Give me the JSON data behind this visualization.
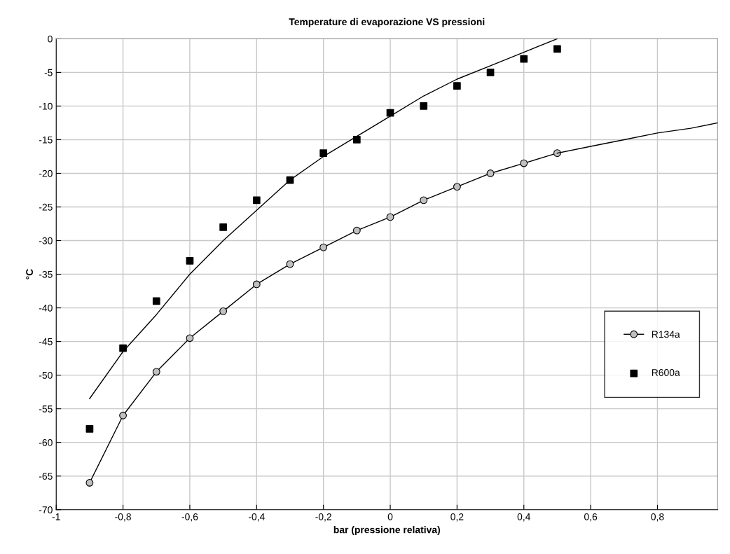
{
  "chart_data": {
    "type": "line",
    "title": "Temperature di evaporazione VS pressioni",
    "xlabel": "bar (pressione relativa)",
    "ylabel": "°C",
    "xlim": [
      -1,
      0.98
    ],
    "xticks": [
      {
        "value": -1,
        "label": "-1"
      },
      {
        "value": -0.8,
        "label": "-0,8"
      },
      {
        "value": -0.6,
        "label": "-0,6"
      },
      {
        "value": -0.4,
        "label": "-0,4"
      },
      {
        "value": -0.2,
        "label": "-0,2"
      },
      0,
      {
        "value": 0.2,
        "label": "0,2"
      },
      {
        "value": 0.4,
        "label": "0,4"
      },
      {
        "value": 0.6,
        "label": "0,6"
      },
      {
        "value": 0.8,
        "label": "0,8"
      }
    ],
    "ylim": [
      -70,
      0
    ],
    "yticks": [
      -70,
      -65,
      -60,
      -55,
      -50,
      -45,
      -40,
      -35,
      -30,
      -25,
      -20,
      -15,
      -10,
      -5,
      0
    ],
    "grid": true,
    "legend": "right",
    "series": [
      {
        "name": "R134a",
        "marker": "circle",
        "color": "#000000",
        "x": [
          -0.9,
          -0.8,
          -0.7,
          -0.6,
          -0.5,
          -0.4,
          -0.3,
          -0.2,
          -0.1,
          0,
          0.1,
          0.2,
          0.3,
          0.4,
          0.5
        ],
        "values": [
          -66,
          -56,
          -49.5,
          -44.5,
          -40.5,
          -36.5,
          -33.5,
          -31,
          -28.5,
          -26.5,
          -24,
          -22,
          -20,
          -18.5,
          -17
        ]
      },
      {
        "marker": "none",
        "color": "#000000",
        "x": [
          0.5,
          0.6,
          0.7,
          0.8,
          0.9,
          0.98
        ],
        "values": [
          -17,
          -16,
          -15,
          -14,
          -13.3,
          -12.5
        ]
      },
      {
        "name": "R600a",
        "type": "scatter",
        "marker": "square",
        "color": "#000000",
        "x": [
          -0.9,
          -0.8,
          -0.7,
          -0.6,
          -0.5,
          -0.4,
          -0.3,
          -0.2,
          -0.1,
          0,
          0.1,
          0.2,
          0.3,
          0.4,
          0.5
        ],
        "values": [
          -58,
          -46,
          -39,
          -33,
          -28,
          -24,
          -21,
          -17,
          -15,
          -11,
          -10,
          -7,
          -5,
          -3,
          -1.5
        ]
      },
      {
        "marker": "none",
        "color": "#000000",
        "x": [
          -0.9,
          -0.8,
          -0.7,
          -0.6,
          -0.5,
          -0.4,
          -0.3,
          -0.2,
          -0.1,
          0,
          0.1,
          0.2,
          0.3,
          0.4,
          0.5
        ],
        "values": [
          -53.5,
          -46.5,
          -41,
          -35,
          -30,
          -25.5,
          -21,
          -17.5,
          -14.5,
          -11.5,
          -8.5,
          -6,
          -4,
          -2,
          0
        ]
      }
    ]
  }
}
